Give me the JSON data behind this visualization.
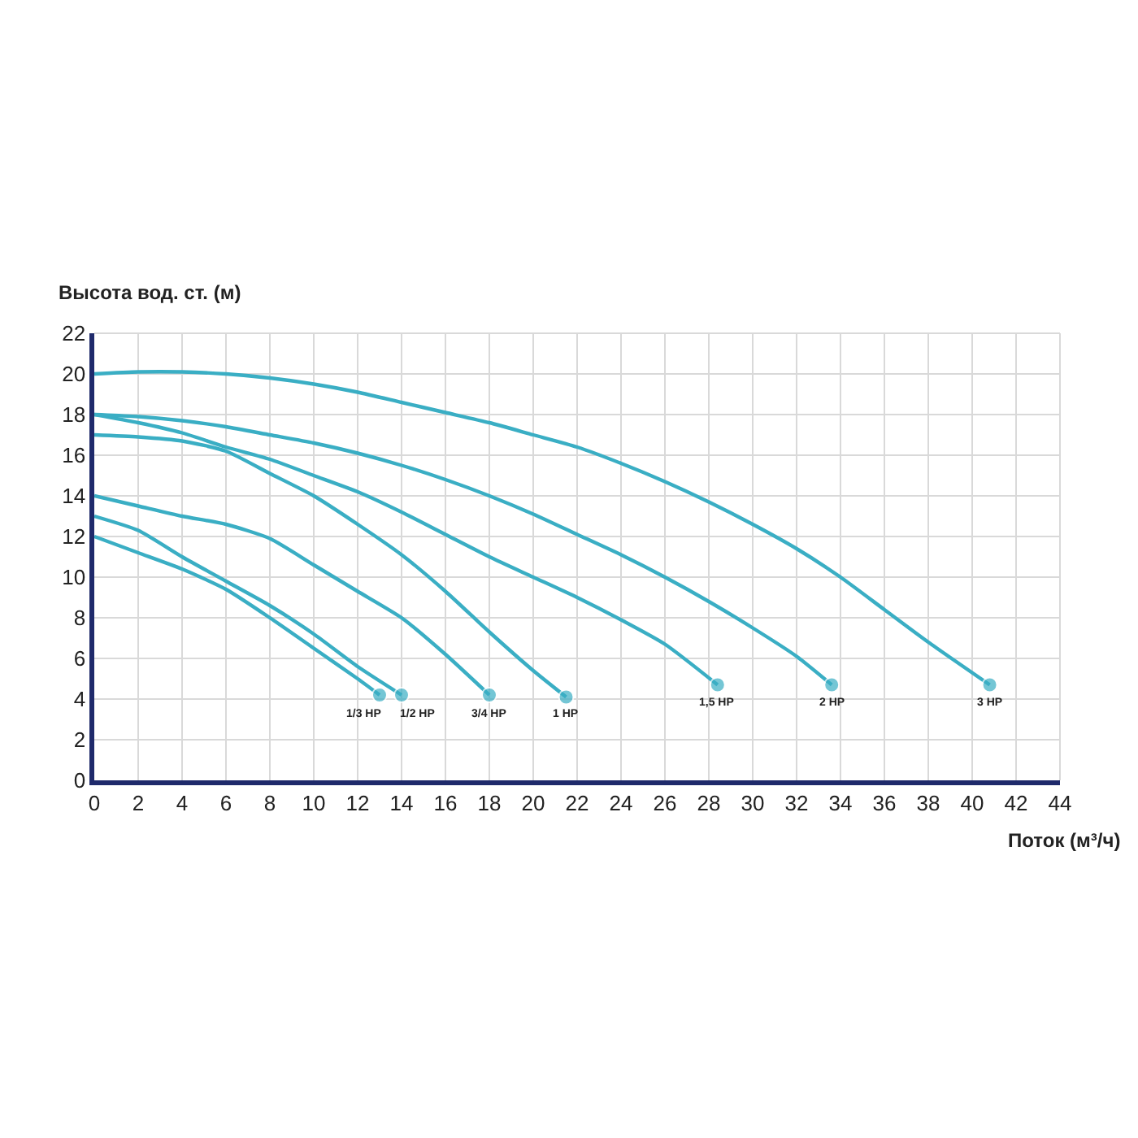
{
  "chart_data": {
    "type": "line",
    "xlabel": "Поток (м³/ч)",
    "ylabel": "Высота вод. ст. (м)",
    "xlim": [
      0,
      44
    ],
    "xticks": [
      0,
      2,
      4,
      6,
      8,
      10,
      12,
      14,
      16,
      18,
      20,
      22,
      24,
      26,
      28,
      30,
      32,
      34,
      36,
      38,
      40,
      42,
      44
    ],
    "ylim": [
      0,
      22
    ],
    "yticks": [
      0,
      2,
      4,
      6,
      8,
      10,
      12,
      14,
      16,
      18,
      20,
      22
    ],
    "grid": true,
    "line_style": "solid",
    "legend": false,
    "series": [
      {
        "name": "1/3 HP",
        "color": "#3aaec4",
        "x": [
          0,
          2,
          4,
          6,
          8,
          10,
          12,
          13
        ],
        "values": [
          12,
          11.2,
          10.4,
          9.4,
          8,
          6.5,
          5,
          4.2
        ]
      },
      {
        "name": "1/2 HP",
        "color": "#3aaec4",
        "x": [
          0,
          2,
          4,
          6,
          8,
          10,
          12,
          14
        ],
        "values": [
          13,
          12.3,
          11,
          9.8,
          8.6,
          7.2,
          5.6,
          4.2
        ]
      },
      {
        "name": "3/4 HP",
        "color": "#3aaec4",
        "x": [
          0,
          2,
          4,
          6,
          8,
          10,
          12,
          14,
          16,
          18
        ],
        "values": [
          14,
          13.5,
          13,
          12.6,
          11.9,
          10.6,
          9.3,
          8,
          6.2,
          4.2
        ]
      },
      {
        "name": "1 HP",
        "color": "#3aaec4",
        "x": [
          0,
          2,
          4,
          6,
          8,
          10,
          12,
          14,
          16,
          18,
          20,
          21.5
        ],
        "values": [
          17,
          16.9,
          16.7,
          16.2,
          15.1,
          14,
          12.6,
          11.1,
          9.3,
          7.3,
          5.4,
          4.1
        ]
      },
      {
        "name": "1,5 HP",
        "color": "#3aaec4",
        "x": [
          0,
          2,
          4,
          6,
          8,
          10,
          12,
          14,
          16,
          18,
          20,
          22,
          24,
          26,
          28.4
        ],
        "values": [
          18,
          17.6,
          17.1,
          16.4,
          15.8,
          15,
          14.2,
          13.2,
          12.1,
          11,
          10,
          9,
          7.9,
          6.7,
          4.7
        ]
      },
      {
        "name": "2 HP",
        "color": "#3aaec4",
        "x": [
          0,
          2,
          4,
          6,
          8,
          10,
          12,
          14,
          16,
          18,
          20,
          22,
          24,
          26,
          28,
          30,
          32,
          33.6
        ],
        "values": [
          18,
          17.9,
          17.7,
          17.4,
          17,
          16.6,
          16.1,
          15.5,
          14.8,
          14,
          13.1,
          12.1,
          11.1,
          10,
          8.8,
          7.5,
          6.1,
          4.7
        ]
      },
      {
        "name": "3 HP",
        "color": "#3aaec4",
        "x": [
          0,
          2,
          4,
          6,
          8,
          10,
          12,
          14,
          16,
          18,
          20,
          22,
          24,
          26,
          28,
          30,
          32,
          34,
          36,
          38,
          40.8
        ],
        "values": [
          20,
          20.1,
          20.1,
          20,
          19.8,
          19.5,
          19.1,
          18.6,
          18.1,
          17.6,
          17,
          16.4,
          15.6,
          14.7,
          13.7,
          12.6,
          11.4,
          10,
          8.4,
          6.8,
          4.7
        ]
      }
    ]
  }
}
